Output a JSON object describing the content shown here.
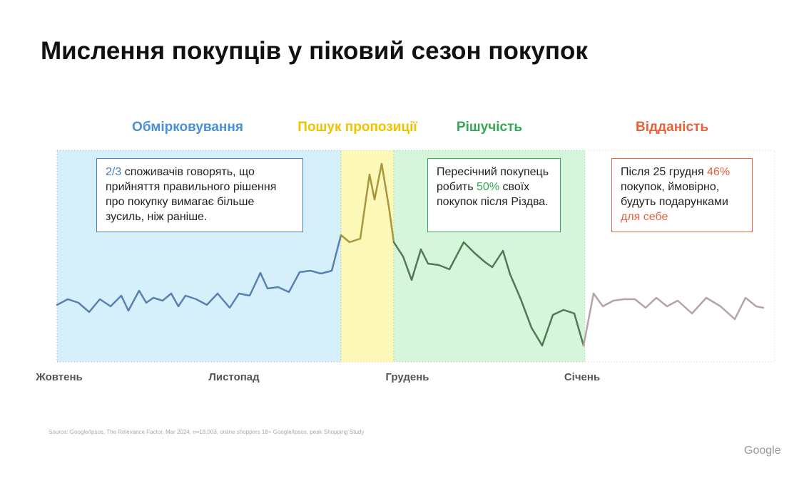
{
  "header": {
    "title": "Мислення покупців у піковий сезон покупок"
  },
  "phases": [
    "Обмірковування",
    "Пошук пропозиції",
    "Рішучість",
    "Відданість"
  ],
  "callouts": [
    {
      "highlight": "2/3",
      "text": " споживачів говорять, що прийняття правильного рішення про покупку вимагає більше зусиль, ніж раніше."
    },
    {
      "before": "Пересічний покупець робить ",
      "highlight": "50%",
      "after": " своїх покупок після Різдва."
    },
    {
      "before": "Після 25 грудня ",
      "highlight": "46%",
      "middle": " покупок, ймовірно, будуть подарунками ",
      "highlight2": "для себе"
    }
  ],
  "months": [
    "Жовтень",
    "Листопад",
    "Грудень",
    "Січень"
  ],
  "source": "Source: Google/Ipsos, The Relevance Factor, Mar 2024, n=18,003, online shoppers 18+  Google/Ipsos, peak Shopping Study",
  "logo": "Google"
}
